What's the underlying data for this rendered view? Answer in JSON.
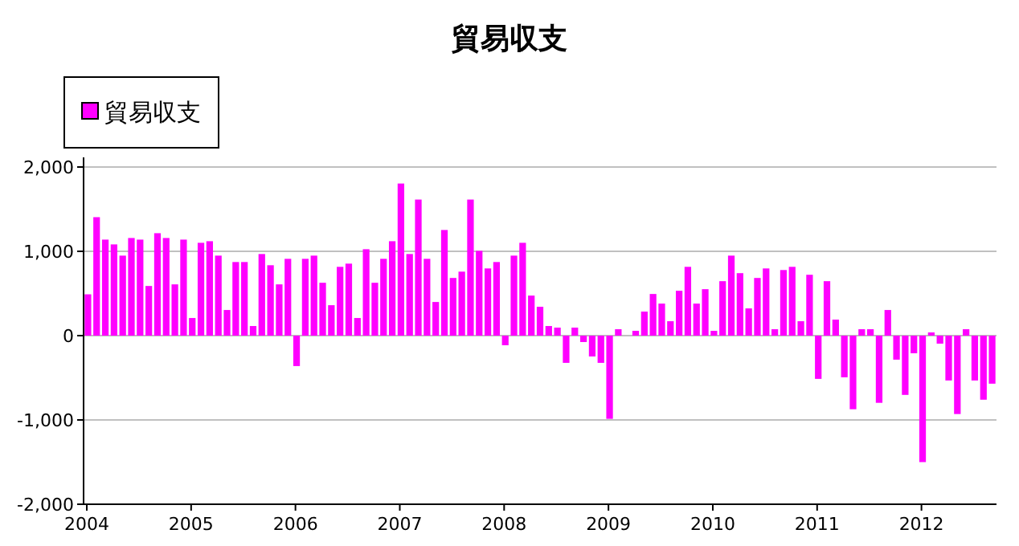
{
  "chart_data": {
    "type": "bar",
    "title": "貿易収支",
    "categories": [
      "2004",
      null,
      null,
      null,
      null,
      null,
      null,
      null,
      null,
      null,
      null,
      null,
      "2005",
      null,
      null,
      null,
      null,
      null,
      null,
      null,
      null,
      null,
      null,
      null,
      "2006",
      null,
      null,
      null,
      null,
      null,
      null,
      null,
      null,
      null,
      null,
      null,
      "2007",
      null,
      null,
      null,
      null,
      null,
      null,
      null,
      null,
      null,
      null,
      null,
      "2008",
      null,
      null,
      null,
      null,
      null,
      null,
      null,
      null,
      null,
      null,
      null,
      "2009",
      null,
      null,
      null,
      null,
      null,
      null,
      null,
      null,
      null,
      null,
      null,
      "2010",
      null,
      null,
      null,
      null,
      null,
      null,
      null,
      null,
      null,
      null,
      null,
      "2011",
      null,
      null,
      null,
      null,
      null,
      null,
      null,
      null,
      null,
      null,
      null,
      "2012",
      null,
      null,
      null,
      null,
      null,
      null,
      null,
      null
    ],
    "series": [
      {
        "name": "貿易収支",
        "color": "#ff00ff",
        "values": [
          490,
          1405,
          1139,
          1082,
          949,
          1158,
          1139,
          589,
          1215,
          1158,
          608,
          1139,
          209,
          1101,
          1120,
          949,
          304,
          873,
          873,
          114,
          968,
          835,
          608,
          911,
          -361,
          911,
          949,
          627,
          361,
          816,
          854,
          209,
          1025,
          627,
          911,
          1120,
          1804,
          968,
          1614,
          911,
          399,
          1253,
          684,
          759,
          1614,
          1006,
          797,
          873,
          -114,
          949,
          1101,
          475,
          342,
          114,
          95,
          -323,
          95,
          -76,
          -247,
          -323,
          -987,
          76,
          0,
          57,
          285,
          494,
          380,
          171,
          532,
          816,
          380,
          551,
          57,
          646,
          949,
          741,
          323,
          684,
          797,
          76,
          778,
          816,
          171,
          722,
          -513,
          646,
          190,
          -494,
          -873,
          76,
          76,
          -797,
          304,
          -285,
          -703,
          -209,
          -1500,
          38,
          -95,
          -532,
          -930,
          76,
          -532,
          -760,
          -570
        ]
      }
    ],
    "ylim": [
      -2000,
      2000
    ],
    "yticks": [
      {
        "value": -2000,
        "label": "-2,000"
      },
      {
        "value": -1000,
        "label": "-1,000"
      },
      0,
      {
        "value": 1000,
        "label": "1,000"
      },
      {
        "value": 2000,
        "label": "2,000"
      }
    ],
    "grid": "y",
    "legend": "top left"
  }
}
